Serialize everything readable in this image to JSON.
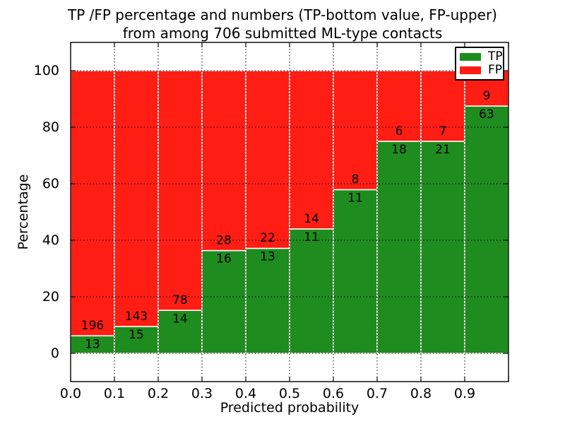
{
  "title": {
    "line1": "TP /FP percentage and numbers (TP-bottom value, FP-upper)",
    "line2": "from among 706 submitted ML-type contacts"
  },
  "chart_data": {
    "type": "bar",
    "stacked": true,
    "normalized_to_percent": 100,
    "title": "TP /FP percentage and numbers (TP-bottom value, FP-upper) from among 706 submitted ML-type contacts",
    "xlabel": "Predicted probability",
    "ylabel": "Percentage",
    "xlim": [
      0.0,
      1.0
    ],
    "ylim": [
      -10,
      110
    ],
    "bin_width": 0.1,
    "bin_edges": [
      0.0,
      0.1,
      0.2,
      0.3,
      0.4,
      0.5,
      0.6,
      0.7,
      0.8,
      0.9,
      1.0
    ],
    "x_tick_labels": [
      "0.0",
      "0.1",
      "0.2",
      "0.3",
      "0.4",
      "0.5",
      "0.6",
      "0.7",
      "0.8",
      "0.9"
    ],
    "y_tick_values": [
      0,
      20,
      40,
      60,
      80,
      100
    ],
    "series": [
      {
        "name": "TP",
        "color": "#1f8c1f",
        "counts": [
          13,
          15,
          14,
          16,
          13,
          11,
          11,
          18,
          21,
          63
        ]
      },
      {
        "name": "FP",
        "color": "#ff1d14",
        "counts": [
          196,
          143,
          78,
          28,
          22,
          14,
          8,
          6,
          7,
          9
        ]
      }
    ],
    "tp_percent_of_bin": [
      6.2,
      9.5,
      15.2,
      36.4,
      37.1,
      44.0,
      57.9,
      75.0,
      75.0,
      87.5
    ],
    "total_contacts": 706,
    "legend": {
      "entries": [
        "TP",
        "FP"
      ],
      "position": "upper right"
    },
    "grid": true,
    "grid_style": "dotted",
    "bar_edge_color": "#ffffff",
    "axis_color": "#000000",
    "background_color": "#ffffff"
  }
}
